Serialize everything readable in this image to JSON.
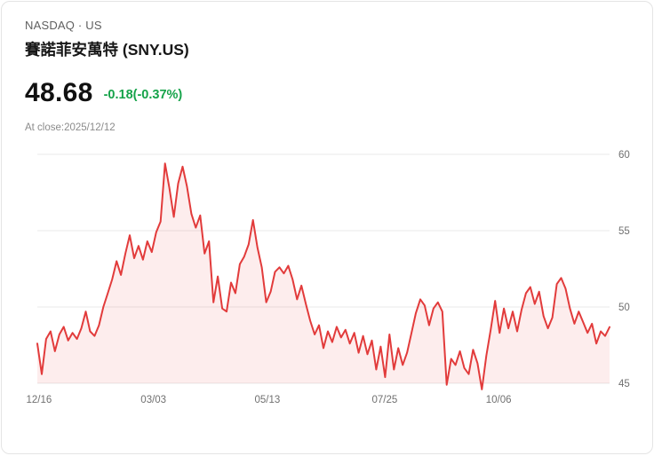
{
  "header": {
    "exchange": "NASDAQ · US",
    "title": "賽諾菲安萬特 (SNY.US)"
  },
  "quote": {
    "price": "48.68",
    "change": "-0.18(-0.37%)",
    "change_color": "#16a34a",
    "as_of": "At close:2025/12/12"
  },
  "chart_data": {
    "type": "area",
    "title": "SNY.US 1-year price",
    "xlabel": "",
    "ylabel": "",
    "ylim": [
      45,
      60
    ],
    "yticks": [
      45,
      50,
      55,
      60
    ],
    "grid": true,
    "legend": false,
    "x_labels": [
      {
        "label": "12/16",
        "pos": 0.003
      },
      {
        "label": "03/03",
        "pos": 0.203
      },
      {
        "label": "05/13",
        "pos": 0.402
      },
      {
        "label": "07/25",
        "pos": 0.607
      },
      {
        "label": "10/06",
        "pos": 0.806
      }
    ],
    "values": [
      47.6,
      45.6,
      47.9,
      48.4,
      47.1,
      48.2,
      48.7,
      47.8,
      48.3,
      47.9,
      48.6,
      49.7,
      48.4,
      48.1,
      48.8,
      50.0,
      50.9,
      51.8,
      53.0,
      52.1,
      53.5,
      54.7,
      53.2,
      54.0,
      53.1,
      54.3,
      53.6,
      54.9,
      55.6,
      59.4,
      57.8,
      55.9,
      58.1,
      59.2,
      57.9,
      56.1,
      55.2,
      56.0,
      53.5,
      54.3,
      50.3,
      52.0,
      49.9,
      49.7,
      51.6,
      50.9,
      52.8,
      53.3,
      54.1,
      55.7,
      53.9,
      52.6,
      50.3,
      51.0,
      52.3,
      52.6,
      52.2,
      52.7,
      51.8,
      50.5,
      51.4,
      50.2,
      49.1,
      48.2,
      48.8,
      47.3,
      48.4,
      47.7,
      48.7,
      48.0,
      48.5,
      47.6,
      48.3,
      47.0,
      48.1,
      46.9,
      47.8,
      45.9,
      47.4,
      45.4,
      48.2,
      45.9,
      47.3,
      46.2,
      47.0,
      48.3,
      49.6,
      50.5,
      50.1,
      48.8,
      49.9,
      50.3,
      49.7,
      44.9,
      46.6,
      46.2,
      47.1,
      46.0,
      45.6,
      47.2,
      46.3,
      44.6,
      46.8,
      48.5,
      50.4,
      48.3,
      49.9,
      48.6,
      49.7,
      48.4,
      49.8,
      50.9,
      51.3,
      50.2,
      51.0,
      49.4,
      48.6,
      49.3,
      51.5,
      51.9,
      51.2,
      49.9,
      48.9,
      49.7,
      49.0,
      48.3,
      48.9,
      47.6,
      48.4,
      48.1,
      48.68
    ],
    "colors": {
      "line": "#e23b3b",
      "fill": "rgba(229,57,53,0.09)",
      "grid": "#e9e9e9",
      "axis_text": "#707070"
    }
  }
}
